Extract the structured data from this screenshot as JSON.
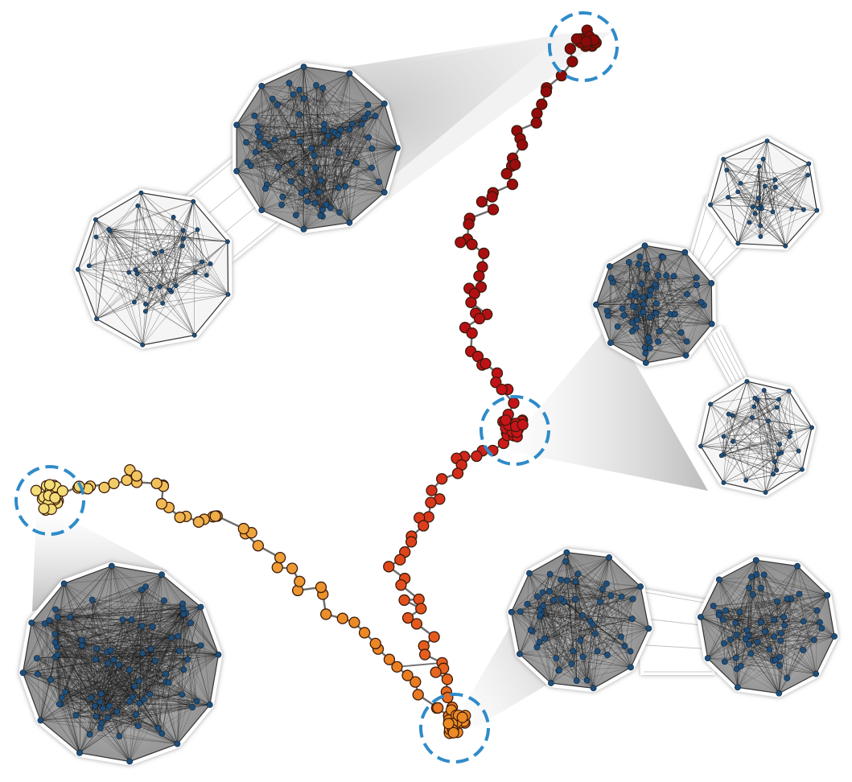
{
  "colors": {
    "background": "#ffffff",
    "inset_node": "#1f4e79",
    "inset_edge": "#1a1a1a",
    "highlight_ring": "#2f8bc9",
    "projection_shade": "#9a9a9a",
    "trajectory_link": "#6b6b6b",
    "gradient_dark_red": "#8b0a0a",
    "gradient_red": "#c8141a",
    "gradient_orange_red": "#e0461c",
    "gradient_orange": "#ec8a25",
    "gradient_yellow": "#f3dd78"
  },
  "markers": {
    "node_shape": "sphere",
    "highlight_ring_style": "dashed-circle"
  },
  "insets": [
    {
      "id": "top-left",
      "shape": "two-cluster-network",
      "cluster_density": [
        "dense",
        "sparse"
      ]
    },
    {
      "id": "right",
      "shape": "three-cluster-network",
      "cluster_density": [
        "sparse",
        "dense",
        "sparse"
      ]
    },
    {
      "id": "bottom-right",
      "shape": "two-cluster-network",
      "cluster_density": [
        "dense",
        "dense"
      ]
    },
    {
      "id": "bottom-left",
      "shape": "single-cluster-network",
      "cluster_density": [
        "very-dense"
      ]
    }
  ]
}
